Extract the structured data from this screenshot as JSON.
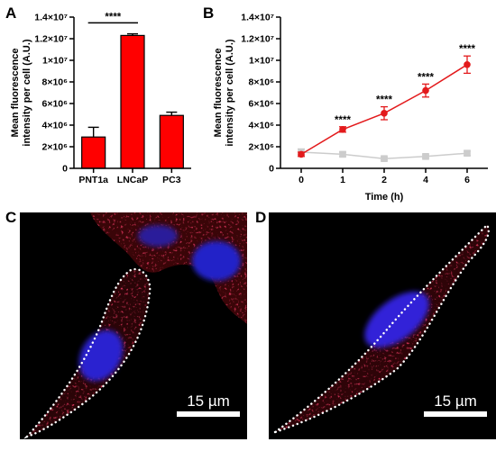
{
  "panels": {
    "a": "A",
    "b": "B",
    "c": "C",
    "d": "D"
  },
  "chart_data": [
    {
      "panel": "A",
      "type": "bar",
      "categories": [
        "PNT1a",
        "LNCaP",
        "PC3"
      ],
      "values": [
        2900000,
        12300000,
        4900000
      ],
      "errors": [
        900000,
        150000,
        300000
      ],
      "color": "#ff0000",
      "ylabel": "Mean fluorescence intensity per cell (A.U.)",
      "ylim": [
        0,
        14000000
      ],
      "yticks": [
        "0",
        "2×10⁶",
        "4×10⁶",
        "6×10⁶",
        "8×10⁶",
        "1×10⁷",
        "1.2×10⁷",
        "1.4×10⁷"
      ],
      "significance": {
        "label": "****",
        "between": [
          "PNT1a",
          "LNCaP"
        ]
      }
    },
    {
      "panel": "B",
      "type": "line",
      "xlabel": "Time (h)",
      "ylabel": "Mean fluorescence intensity per cell (A.U.)",
      "categories": [
        "0",
        "1",
        "2",
        "4",
        "6"
      ],
      "ylim": [
        0,
        14000000
      ],
      "yticks": [
        "0",
        "2×10⁶",
        "4×10⁶",
        "6×10⁶",
        "8×10⁶",
        "1×10⁷",
        "1.2×10⁷",
        "1.4×10⁷"
      ],
      "series": [
        {
          "color": "#e31a1c",
          "marker": "circle",
          "values": [
            1300000,
            3600000,
            5100000,
            7200000,
            9600000
          ],
          "errors": [
            200000,
            250000,
            600000,
            600000,
            800000
          ],
          "annotations": [
            "",
            "****",
            "****",
            "****",
            "****"
          ]
        },
        {
          "color": "#cccccc",
          "marker": "square",
          "values": [
            1500000,
            1300000,
            900000,
            1100000,
            1400000
          ],
          "errors": [
            300000,
            200000,
            150000,
            150000,
            200000
          ]
        }
      ]
    }
  ],
  "micrographs": {
    "c": {
      "scale_bar": "15 µm"
    },
    "d": {
      "scale_bar": "15 µm"
    }
  }
}
